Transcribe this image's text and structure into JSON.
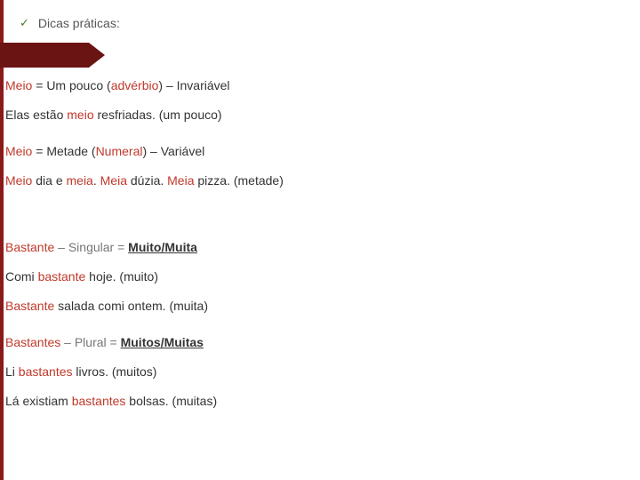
{
  "colors": {
    "background": "#ffffff",
    "left_bar": "#8b1a1a",
    "decoration": "#6b1414",
    "text": "#333333",
    "red": "#c0392b",
    "check": "#4a7a2a"
  },
  "fontsize": 14,
  "header": {
    "check": "✓",
    "title": "Dicas práticas:"
  },
  "block1": {
    "l1_a": "Meio",
    "l1_b": " = Um pouco (",
    "l1_c": "advérbio",
    "l1_d": ") – Invariável",
    "l2_a": "Elas estão ",
    "l2_b": "meio",
    "l2_c": " resfriadas. (um pouco)"
  },
  "block2": {
    "l1_a": "Meio",
    "l1_b": " = Metade (",
    "l1_c": "Numeral",
    "l1_d": ") – Variável",
    "l2_a": "Meio",
    "l2_b": " dia e ",
    "l2_c": "meia",
    "l2_d": ". ",
    "l2_e": "Meia",
    "l2_f": " dúzia. ",
    "l2_g": "Meia",
    "l2_h": " pizza. (metade)"
  },
  "block3": {
    "l1_a": "Bastante",
    "l1_b": " – Singular = ",
    "l1_c": "Muito/Muita",
    "l2_a": "Comi ",
    "l2_b": "bastante",
    "l2_c": " hoje. (muito)",
    "l3_a": "Bastante",
    "l3_b": " salada comi ontem. (muita)"
  },
  "block4": {
    "l1_a": "Bastantes",
    "l1_b": " – Plural = ",
    "l1_c": "Muitos/Muitas",
    "l2_a": "Li ",
    "l2_b": "bastantes",
    "l2_c": " livros. (muitos)",
    "l3_a": "Lá existiam ",
    "l3_b": "bastantes",
    "l3_c": " bolsas. (muitas)"
  }
}
